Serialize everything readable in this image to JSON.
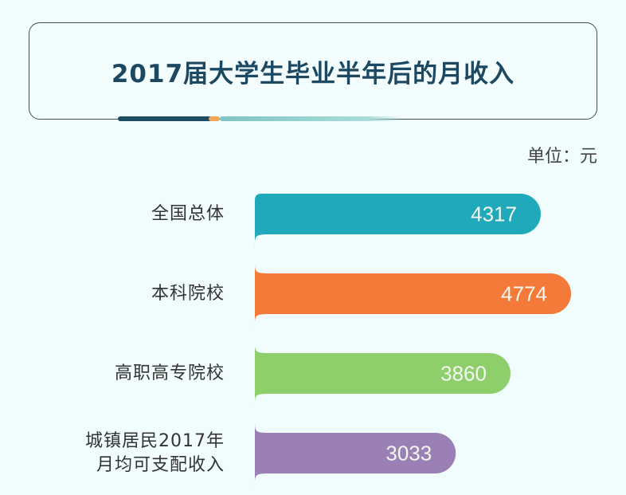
{
  "chart_data": {
    "type": "bar",
    "orientation": "horizontal",
    "title": "2017届大学生毕业半年后的月收入",
    "unit_label": "单位：元",
    "categories": [
      "全国总体",
      "本科院校",
      "高职高专院校",
      "城镇居民2017年月均可支配收入"
    ],
    "category_lines": [
      [
        "全国总体"
      ],
      [
        "本科院校"
      ],
      [
        "高职高专院校"
      ],
      [
        "城镇居民2017年",
        "月均可支配收入"
      ]
    ],
    "values": [
      4317,
      4774,
      3860,
      3033
    ],
    "colors": [
      "#1fa9bb",
      "#f47a3a",
      "#8ecf6c",
      "#9a80b4"
    ],
    "xlim": [
      0,
      4774
    ],
    "grid": false,
    "legend": "none"
  }
}
